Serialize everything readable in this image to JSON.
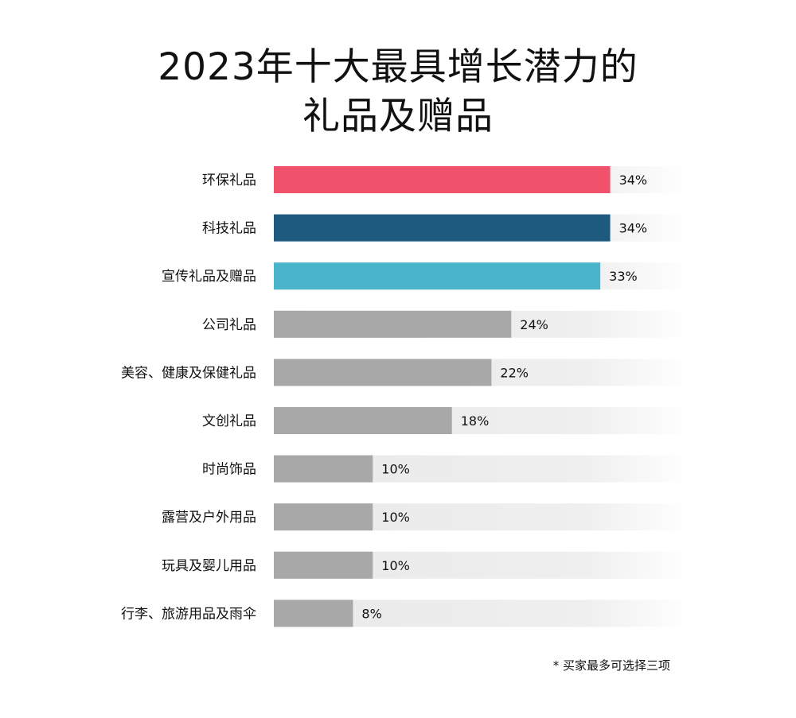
{
  "chart_data": {
    "type": "bar",
    "orientation": "horizontal",
    "title_line1": "2023年十大最具增长潜力的",
    "title_line2": "礼品及赠品",
    "categories": [
      "环保礼品",
      "科技礼品",
      "宣传礼品及赠品",
      "公司礼品",
      "美容、健康及保健礼品",
      "文创礼品",
      "时尚饰品",
      "露营及户外用品",
      "玩具及婴儿用品",
      "行李、旅游用品及雨伞"
    ],
    "values": [
      34,
      34,
      33,
      24,
      22,
      18,
      10,
      10,
      10,
      8
    ],
    "labels": [
      "34%",
      "34%",
      "33%",
      "24%",
      "22%",
      "18%",
      "10%",
      "10%",
      "10%",
      "8%"
    ],
    "colors": [
      "#f0526b",
      "#1e5a80",
      "#4ab4cc",
      "#a8a8a8",
      "#a8a8a8",
      "#a8a8a8",
      "#a8a8a8",
      "#a8a8a8",
      "#a8a8a8",
      "#a8a8a8"
    ],
    "track_color": "#ececec",
    "xlim": [
      0,
      42
    ],
    "footnote": "* 买家最多可选择三项"
  }
}
